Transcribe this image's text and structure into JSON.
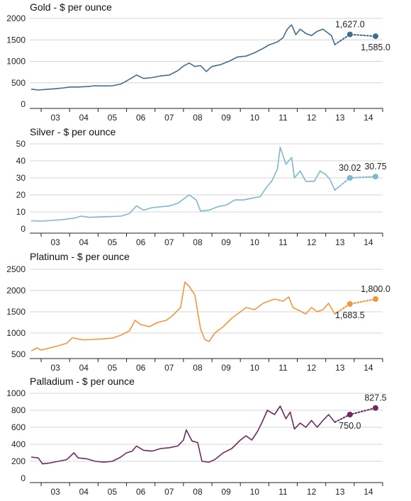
{
  "chart_data": [
    {
      "type": "line",
      "title": "Gold - $ per ounce",
      "color": "#3f6f8f",
      "ylim": [
        0,
        2000
      ],
      "yticks": [
        0,
        500,
        1000,
        1500,
        2000
      ],
      "ytick_labels": [
        "0",
        "500",
        "1000",
        "1500",
        "2000"
      ],
      "xlim": [
        2002.6,
        2015.0
      ],
      "xtick_labels": [
        "03",
        "04",
        "05",
        "06",
        "07",
        "08",
        "09",
        "10",
        "11",
        "12",
        "13",
        "14"
      ],
      "grid": true,
      "series": [
        {
          "x": [
            2002.65,
            2002.9,
            2003.2,
            2003.5,
            2003.8,
            2004.0,
            2004.3,
            2004.6,
            2004.9,
            2005.2,
            2005.5,
            2005.8,
            2006.0,
            2006.35,
            2006.6,
            2006.9,
            2007.2,
            2007.5,
            2007.8,
            2008.0,
            2008.2,
            2008.4,
            2008.6,
            2008.8,
            2009.0,
            2009.3,
            2009.6,
            2009.9,
            2010.2,
            2010.5,
            2010.8,
            2011.0,
            2011.3,
            2011.5,
            2011.65,
            2011.8,
            2011.95,
            2012.1,
            2012.3,
            2012.5,
            2012.7,
            2012.9,
            2013.1,
            2013.2,
            2013.32
          ],
          "y": [
            350,
            330,
            345,
            360,
            380,
            400,
            400,
            410,
            430,
            425,
            430,
            470,
            540,
            680,
            600,
            620,
            660,
            680,
            780,
            890,
            960,
            880,
            900,
            760,
            880,
            920,
            1000,
            1100,
            1120,
            1200,
            1300,
            1380,
            1450,
            1550,
            1750,
            1850,
            1620,
            1750,
            1650,
            1600,
            1700,
            1750,
            1650,
            1600,
            1390
          ]
        }
      ],
      "forecast": [
        {
          "x": 2013.32,
          "y": 1390
        },
        {
          "x": 2013.85,
          "y": 1627.0,
          "label": "1,627.0",
          "label_pos": "above"
        },
        {
          "x": 2014.75,
          "y": 1585.0,
          "label": "1,585.0",
          "label_pos": "below"
        }
      ]
    },
    {
      "type": "line",
      "title": "Silver - $ per ounce",
      "color": "#7db7d1",
      "ylim": [
        0,
        50
      ],
      "yticks": [
        0,
        10,
        20,
        30,
        40,
        50
      ],
      "ytick_labels": [
        "0",
        "10",
        "20",
        "30",
        "40",
        "50"
      ],
      "xlim": [
        2002.6,
        2015.0
      ],
      "xtick_labels": [
        "03",
        "04",
        "05",
        "06",
        "07",
        "08",
        "09",
        "10",
        "11",
        "12",
        "13",
        "14"
      ],
      "grid": true,
      "series": [
        {
          "x": [
            2002.65,
            2003.0,
            2003.4,
            2003.8,
            2004.2,
            2004.4,
            2004.7,
            2005.0,
            2005.4,
            2005.8,
            2006.1,
            2006.35,
            2006.6,
            2006.9,
            2007.2,
            2007.5,
            2007.8,
            2008.0,
            2008.2,
            2008.45,
            2008.6,
            2008.9,
            2009.2,
            2009.5,
            2009.8,
            2010.1,
            2010.4,
            2010.7,
            2010.9,
            2011.1,
            2011.3,
            2011.4,
            2011.6,
            2011.8,
            2011.9,
            2012.1,
            2012.3,
            2012.6,
            2012.8,
            2013.0,
            2013.15,
            2013.32
          ],
          "y": [
            4.8,
            4.6,
            5.0,
            5.5,
            6.5,
            7.5,
            6.8,
            7.0,
            7.2,
            7.5,
            9.0,
            13.5,
            11.0,
            12.5,
            13.0,
            13.5,
            15.0,
            17.5,
            20.0,
            17.0,
            10.5,
            11.0,
            13.0,
            14.0,
            17.0,
            17.0,
            18.0,
            19.0,
            24.0,
            28.0,
            35.0,
            48.0,
            38.0,
            42.0,
            30.0,
            34.0,
            28.0,
            28.0,
            34.0,
            32.0,
            29.0,
            22.8
          ]
        }
      ],
      "forecast": [
        {
          "x": 2013.32,
          "y": 22.8
        },
        {
          "x": 2013.85,
          "y": 30.02,
          "label": "30.02",
          "label_pos": "above"
        },
        {
          "x": 2014.75,
          "y": 30.75,
          "label": "30.75",
          "label_pos": "above"
        }
      ]
    },
    {
      "type": "line",
      "title": "Platinum - $ per ounce",
      "color": "#f0973a",
      "ylim": [
        500,
        2500
      ],
      "yticks": [
        500,
        1000,
        1500,
        2000,
        2500
      ],
      "ytick_labels": [
        "500",
        "1000",
        "1500",
        "2000",
        "2500"
      ],
      "xlim": [
        2002.6,
        2015.0
      ],
      "xtick_labels": [
        "03",
        "04",
        "05",
        "06",
        "07",
        "08",
        "09",
        "10",
        "11",
        "12",
        "13",
        "14"
      ],
      "grid": true,
      "series": [
        {
          "x": [
            2002.65,
            2002.85,
            2003.0,
            2003.3,
            2003.6,
            2003.9,
            2004.1,
            2004.3,
            2004.5,
            2004.8,
            2005.1,
            2005.5,
            2005.8,
            2006.1,
            2006.3,
            2006.5,
            2006.8,
            2007.1,
            2007.4,
            2007.6,
            2007.75,
            2007.9,
            2008.05,
            2008.2,
            2008.4,
            2008.6,
            2008.75,
            2008.9,
            2009.1,
            2009.4,
            2009.7,
            2010.0,
            2010.2,
            2010.5,
            2010.8,
            2011.0,
            2011.2,
            2011.5,
            2011.7,
            2011.85,
            2012.0,
            2012.3,
            2012.5,
            2012.7,
            2012.9,
            2013.1,
            2013.32
          ],
          "y": [
            580,
            650,
            600,
            650,
            700,
            760,
            890,
            860,
            840,
            850,
            860,
            880,
            950,
            1050,
            1300,
            1200,
            1150,
            1250,
            1300,
            1400,
            1500,
            1600,
            2200,
            2100,
            1900,
            1100,
            850,
            800,
            1000,
            1150,
            1350,
            1500,
            1600,
            1550,
            1700,
            1750,
            1800,
            1750,
            1850,
            1600,
            1550,
            1450,
            1600,
            1500,
            1550,
            1700,
            1450
          ]
        }
      ],
      "forecast": [
        {
          "x": 2013.32,
          "y": 1450
        },
        {
          "x": 2013.85,
          "y": 1683.5,
          "label": "1,683.5",
          "label_pos": "below"
        },
        {
          "x": 2014.75,
          "y": 1800.0,
          "label": "1,800.0",
          "label_pos": "above"
        }
      ]
    },
    {
      "type": "line",
      "title": "Palladium - $ per ounce",
      "color": "#6f2a62",
      "ylim": [
        0,
        1000
      ],
      "yticks": [
        0,
        200,
        400,
        600,
        800,
        1000
      ],
      "ytick_labels": [
        "0",
        "200",
        "400",
        "600",
        "800",
        "1000"
      ],
      "xlim": [
        2002.6,
        2015.0
      ],
      "xtick_labels": [
        "03",
        "04",
        "05",
        "06",
        "07",
        "08",
        "09",
        "10",
        "11",
        "12",
        "13",
        "14"
      ],
      "grid": true,
      "series": [
        {
          "x": [
            2002.65,
            2002.9,
            2003.05,
            2003.3,
            2003.6,
            2003.9,
            2004.15,
            2004.3,
            2004.6,
            2004.9,
            2005.2,
            2005.5,
            2005.8,
            2006.0,
            2006.2,
            2006.35,
            2006.6,
            2006.9,
            2007.2,
            2007.5,
            2007.8,
            2008.0,
            2008.1,
            2008.3,
            2008.5,
            2008.65,
            2008.9,
            2009.1,
            2009.4,
            2009.7,
            2010.0,
            2010.2,
            2010.4,
            2010.6,
            2010.75,
            2010.95,
            2011.2,
            2011.4,
            2011.6,
            2011.75,
            2011.9,
            2012.1,
            2012.3,
            2012.5,
            2012.7,
            2012.9,
            2013.1,
            2013.32
          ],
          "y": [
            250,
            240,
            170,
            180,
            200,
            220,
            300,
            240,
            230,
            200,
            190,
            200,
            250,
            300,
            320,
            380,
            330,
            320,
            350,
            360,
            380,
            450,
            570,
            440,
            420,
            200,
            190,
            220,
            300,
            350,
            450,
            500,
            450,
            550,
            650,
            800,
            750,
            850,
            700,
            780,
            580,
            650,
            600,
            680,
            600,
            680,
            750,
            660
          ]
        }
      ],
      "forecast": [
        {
          "x": 2013.32,
          "y": 660
        },
        {
          "x": 2013.85,
          "y": 750.0,
          "label": "750.0",
          "label_pos": "below"
        },
        {
          "x": 2014.75,
          "y": 827.5,
          "label": "827.5",
          "label_pos": "above"
        }
      ]
    }
  ]
}
